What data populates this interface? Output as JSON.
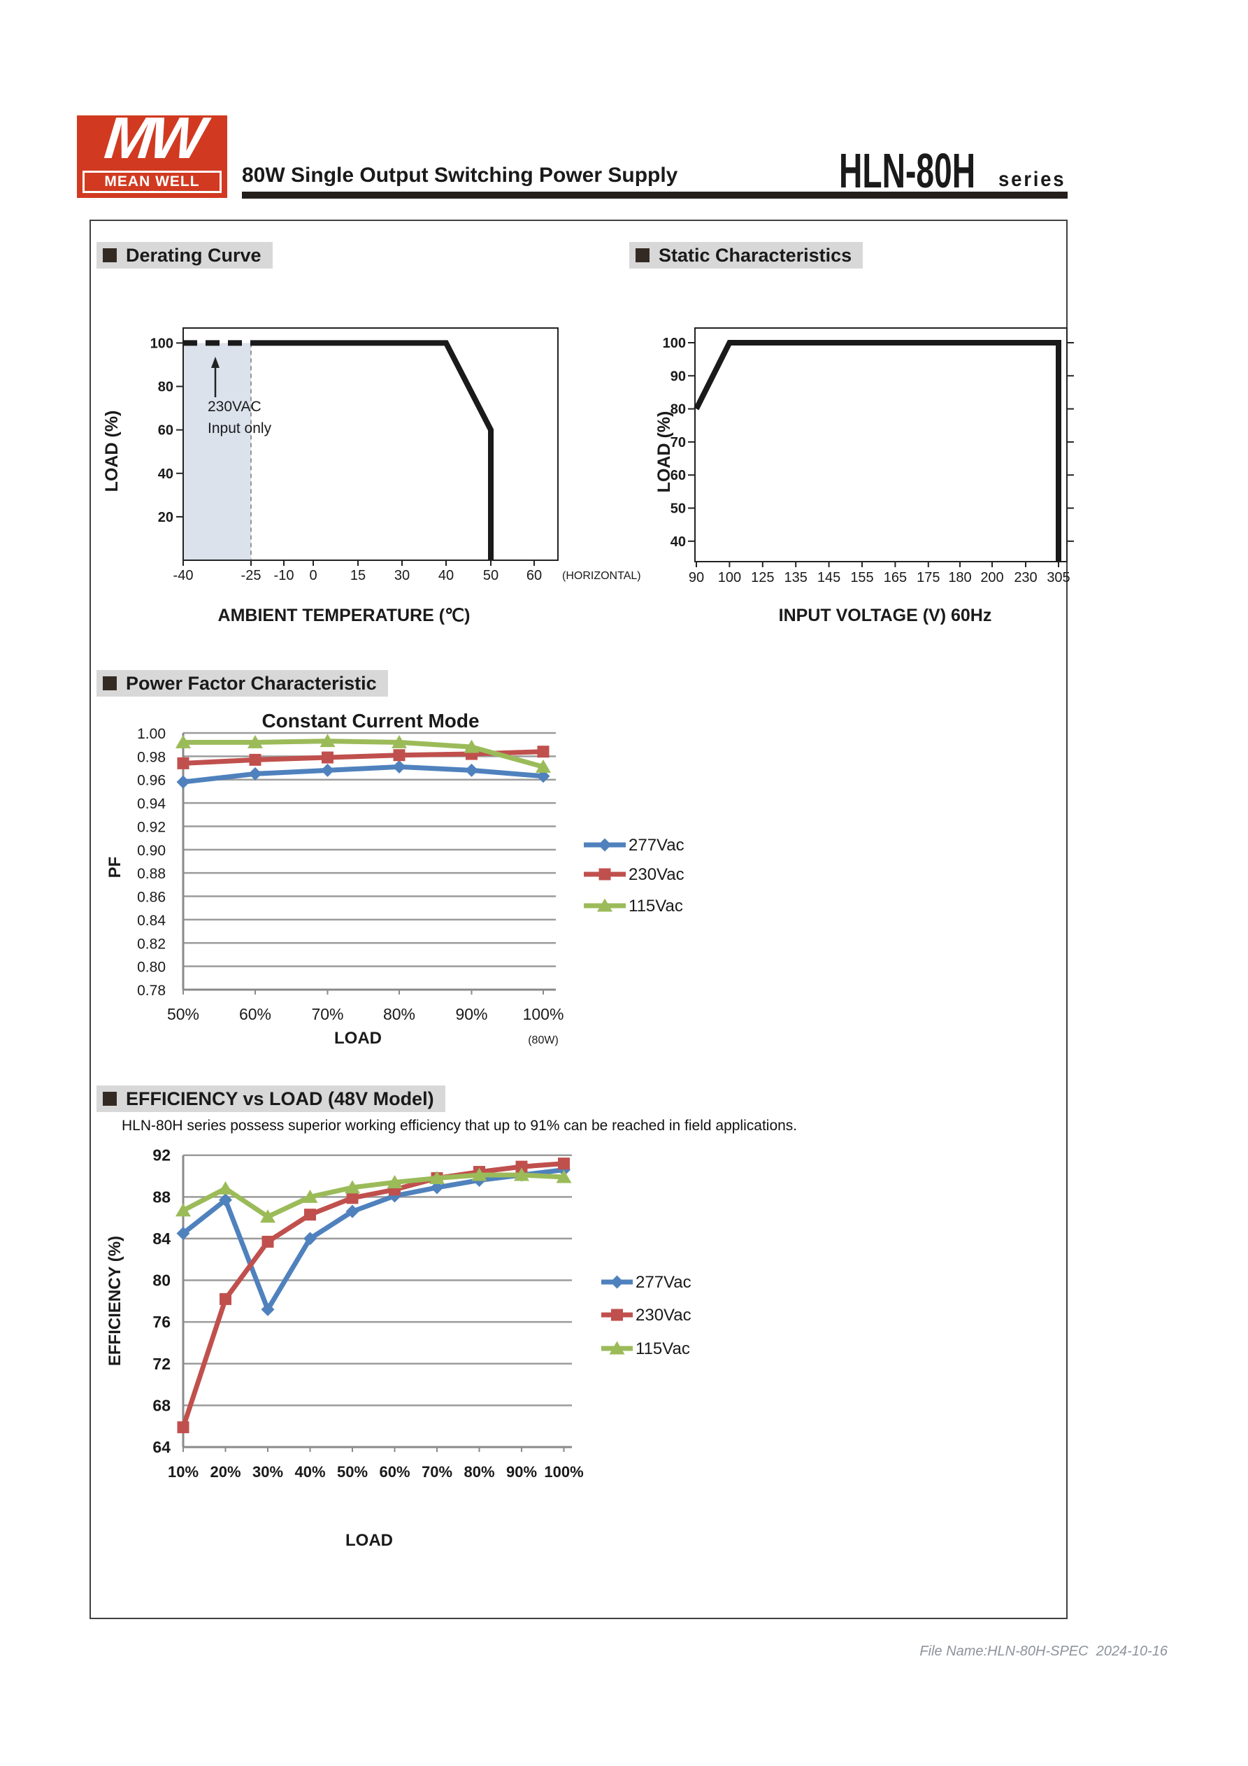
{
  "header": {
    "logo_mw": "MW",
    "logo_brand": "MEAN WELL",
    "title": "80W Single Output Switching Power Supply",
    "model": "HLN-80H",
    "series_label": "series"
  },
  "sections": {
    "derating": {
      "heading": "Derating Curve"
    },
    "static": {
      "heading": "Static Characteristics"
    },
    "power_factor": {
      "heading": "Power Factor Characteristic"
    },
    "efficiency": {
      "heading": "EFFICIENCY vs LOAD (48V Model)",
      "description": "HLN-80H series possess superior working efficiency that up to 91% can be reached in field applications."
    }
  },
  "footer": {
    "text": "File Name:HLN-80H-SPEC  2024-10-16"
  },
  "colors": {
    "series_277Vac": "#4F81BD",
    "series_230Vac": "#C0504D",
    "series_115Vac": "#9BBB59",
    "logo_red": "#d13a21",
    "section_bg": "#d8d8d8",
    "shaded_region": "#dbe2ec"
  },
  "chart_data": [
    {
      "id": "derating_curve",
      "type": "line",
      "title": "",
      "xlabel": "AMBIENT TEMPERATURE (℃)",
      "ylabel": "LOAD (%)",
      "x_ticks": [
        "-40",
        "-25",
        "-10",
        "0",
        "15",
        "30",
        "40",
        "50",
        "60"
      ],
      "x_tick_values": [
        -40,
        -25,
        -10,
        0,
        15,
        30,
        40,
        50,
        60
      ],
      "x_axis_note": "(HORIZONTAL)",
      "y_ticks": [
        20,
        40,
        60,
        80,
        100
      ],
      "ylim": [
        0,
        107
      ],
      "line_color": "#1a1a1a",
      "line_dashed": [
        [
          -40,
          100
        ],
        [
          -25,
          100
        ]
      ],
      "line_solid": [
        [
          -25,
          100
        ],
        [
          40,
          100
        ],
        [
          50,
          60
        ],
        [
          50,
          0
        ]
      ],
      "shaded_region": {
        "x_range": [
          -40,
          -25
        ],
        "annotation_lines": [
          "230VAC",
          "Input only"
        ]
      }
    },
    {
      "id": "static_characteristics",
      "type": "line",
      "xlabel": "INPUT VOLTAGE (V) 60Hz",
      "ylabel": "LOAD (%)",
      "x_ticks": [
        90,
        100,
        125,
        135,
        145,
        155,
        165,
        175,
        180,
        200,
        230,
        305
      ],
      "y_ticks": [
        40,
        50,
        60,
        70,
        80,
        90,
        100
      ],
      "ylim": [
        34,
        104
      ],
      "line_color": "#1a1a1a",
      "line": [
        [
          90,
          80
        ],
        [
          100,
          100
        ],
        [
          305,
          100
        ],
        [
          305,
          0
        ]
      ]
    },
    {
      "id": "power_factor",
      "type": "line",
      "title": "Constant Current Mode",
      "xlabel": "LOAD",
      "ylabel": "PF",
      "x_note": "(80W)",
      "categories": [
        "50%",
        "60%",
        "70%",
        "80%",
        "90%",
        "100%"
      ],
      "ylim": [
        0.78,
        1.0
      ],
      "y_step": 0.02,
      "grid": true,
      "legend_position": "right",
      "series": [
        {
          "name": "277Vac",
          "color": "#4F81BD",
          "marker": "diamond",
          "values": [
            0.958,
            0.965,
            0.968,
            0.971,
            0.968,
            0.963
          ]
        },
        {
          "name": "230Vac",
          "color": "#C0504D",
          "marker": "square",
          "values": [
            0.974,
            0.977,
            0.979,
            0.981,
            0.982,
            0.984
          ]
        },
        {
          "name": "115Vac",
          "color": "#9BBB59",
          "marker": "triangle",
          "values": [
            0.992,
            0.992,
            0.993,
            0.992,
            0.988,
            0.971
          ]
        }
      ]
    },
    {
      "id": "efficiency_vs_load",
      "type": "line",
      "title": "",
      "xlabel": "LOAD",
      "ylabel": "EFFICIENCY (%)",
      "categories": [
        "10%",
        "20%",
        "30%",
        "40%",
        "50%",
        "60%",
        "70%",
        "80%",
        "90%",
        "100%"
      ],
      "ylim": [
        64,
        92
      ],
      "y_step": 4,
      "grid": true,
      "legend_position": "right",
      "series": [
        {
          "name": "277Vac",
          "color": "#4F81BD",
          "marker": "diamond",
          "values": [
            84.5,
            87.7,
            77.2,
            84.0,
            86.6,
            88.1,
            88.9,
            89.6,
            90.1,
            90.6
          ]
        },
        {
          "name": "230Vac",
          "color": "#C0504D",
          "marker": "square",
          "values": [
            65.9,
            78.2,
            83.7,
            86.3,
            87.9,
            88.7,
            89.8,
            90.4,
            90.9,
            91.2
          ]
        },
        {
          "name": "115Vac",
          "color": "#9BBB59",
          "marker": "triangle",
          "values": [
            86.7,
            88.8,
            86.1,
            88.0,
            88.9,
            89.4,
            89.8,
            90.1,
            90.1,
            89.9
          ]
        }
      ]
    }
  ]
}
